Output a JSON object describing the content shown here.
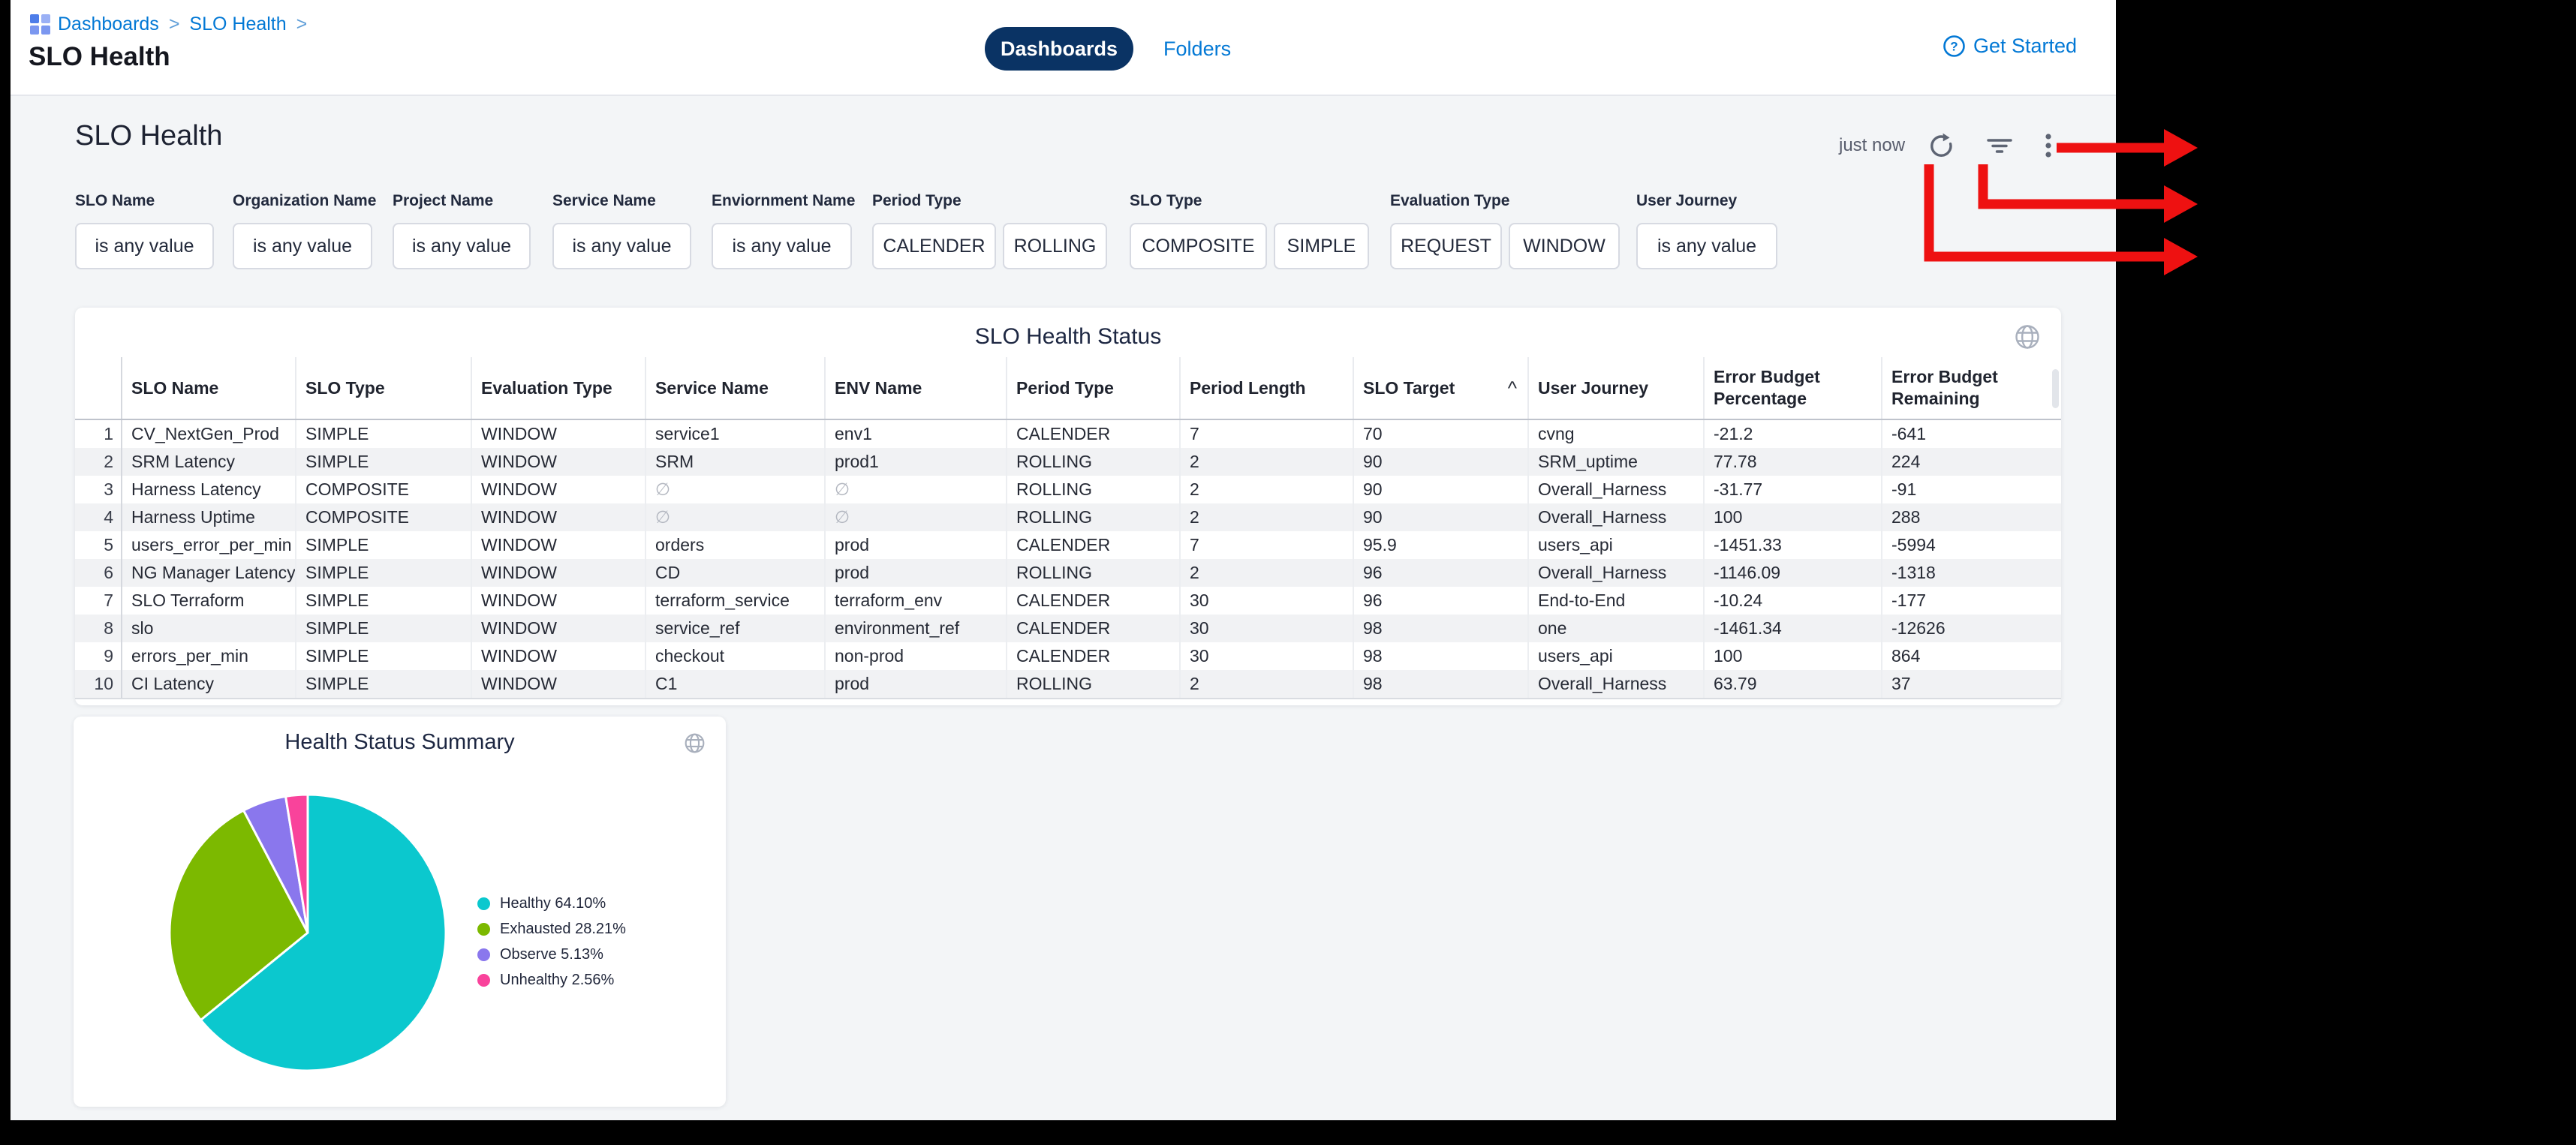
{
  "topbar": {
    "breadcrumb": {
      "items": [
        "Dashboards",
        "SLO Health"
      ],
      "separator": ">"
    },
    "page_title": "SLO Health",
    "tabs": [
      {
        "label": "Dashboards",
        "active": true
      },
      {
        "label": "Folders",
        "active": false
      }
    ],
    "get_started": "Get Started",
    "accent_color": "#0278d5",
    "active_tab_color": "#0a3364"
  },
  "toolbar": {
    "heading": "SLO Health",
    "refreshed": "just now",
    "icons": [
      "refresh-icon",
      "filter-icon",
      "kebab-menu-icon"
    ]
  },
  "filters": [
    {
      "label": "SLO Name",
      "chips": [
        "is any value"
      ]
    },
    {
      "label": "Organization Name",
      "chips": [
        "is any value"
      ]
    },
    {
      "label": "Project Name",
      "chips": [
        "is any value"
      ]
    },
    {
      "label": "Service Name",
      "chips": [
        "is any value"
      ]
    },
    {
      "label": "Enviornment Name",
      "chips": [
        "is any value"
      ]
    },
    {
      "label": "Period Type",
      "chips": [
        "CALENDER",
        "ROLLING"
      ]
    },
    {
      "label": "SLO Type",
      "chips": [
        "COMPOSITE",
        "SIMPLE"
      ]
    },
    {
      "label": "Evaluation Type",
      "chips": [
        "REQUEST",
        "WINDOW"
      ]
    },
    {
      "label": "User Journey",
      "chips": [
        "is any value"
      ]
    }
  ],
  "table": {
    "title": "SLO Health Status",
    "columns": [
      "SLO Name",
      "SLO Type",
      "Evaluation Type",
      "Service Name",
      "ENV Name",
      "Period Type",
      "Period Length",
      "SLO Target",
      "User Journey",
      "Error Budget Percentage",
      "Error Budget Remaining"
    ],
    "sort": {
      "column": "SLO Target",
      "direction": "asc",
      "indicator": "^"
    },
    "null_symbol": "∅",
    "rows": [
      [
        "CV_NextGen_Prod",
        "SIMPLE",
        "WINDOW",
        "service1",
        "env1",
        "CALENDER",
        "7",
        "70",
        "cvng",
        "-21.2",
        "-641"
      ],
      [
        "SRM Latency",
        "SIMPLE",
        "WINDOW",
        "SRM",
        "prod1",
        "ROLLING",
        "2",
        "90",
        "SRM_uptime",
        "77.78",
        "224"
      ],
      [
        "Harness Latency",
        "COMPOSITE",
        "WINDOW",
        "∅",
        "∅",
        "ROLLING",
        "2",
        "90",
        "Overall_Harness",
        "-31.77",
        "-91"
      ],
      [
        "Harness Uptime",
        "COMPOSITE",
        "WINDOW",
        "∅",
        "∅",
        "ROLLING",
        "2",
        "90",
        "Overall_Harness",
        "100",
        "288"
      ],
      [
        "users_error_per_min",
        "SIMPLE",
        "WINDOW",
        "orders",
        "prod",
        "CALENDER",
        "7",
        "95.9",
        "users_api",
        "-1451.33",
        "-5994"
      ],
      [
        "NG Manager Latency",
        "SIMPLE",
        "WINDOW",
        "CD",
        "prod",
        "ROLLING",
        "2",
        "96",
        "Overall_Harness",
        "-1146.09",
        "-1318"
      ],
      [
        "SLO Terraform",
        "SIMPLE",
        "WINDOW",
        "terraform_service",
        "terraform_env",
        "CALENDER",
        "30",
        "96",
        "End-to-End",
        "-10.24",
        "-177"
      ],
      [
        "slo",
        "SIMPLE",
        "WINDOW",
        "service_ref",
        "environment_ref",
        "CALENDER",
        "30",
        "98",
        "one",
        "-1461.34",
        "-12626"
      ],
      [
        "errors_per_min",
        "SIMPLE",
        "WINDOW",
        "checkout",
        "non-prod",
        "CALENDER",
        "30",
        "98",
        "users_api",
        "100",
        "864"
      ],
      [
        "CI Latency",
        "SIMPLE",
        "WINDOW",
        "C1",
        "prod",
        "ROLLING",
        "2",
        "98",
        "Overall_Harness",
        "63.79",
        "37"
      ]
    ]
  },
  "chart_data": {
    "type": "pie",
    "title": "Health Status Summary",
    "labels": [
      "Healthy",
      "Exhausted",
      "Observe",
      "Unhealthy"
    ],
    "values": [
      64.1,
      28.21,
      5.13,
      2.56
    ],
    "colors": [
      "#0bc8ce",
      "#7cb900",
      "#8a77ed",
      "#f9439b"
    ],
    "legend": [
      "Healthy 64.10%",
      "Exhausted 28.21%",
      "Observe 5.13%",
      "Unhealthy 2.56%"
    ],
    "legend_position": "right",
    "start_angle_deg": -90,
    "direction": "clockwise"
  },
  "annotations": {
    "color": "#ee1111",
    "arrows": [
      "points-to-kebab-menu",
      "points-to-filter-button",
      "points-to-refresh-button"
    ]
  }
}
